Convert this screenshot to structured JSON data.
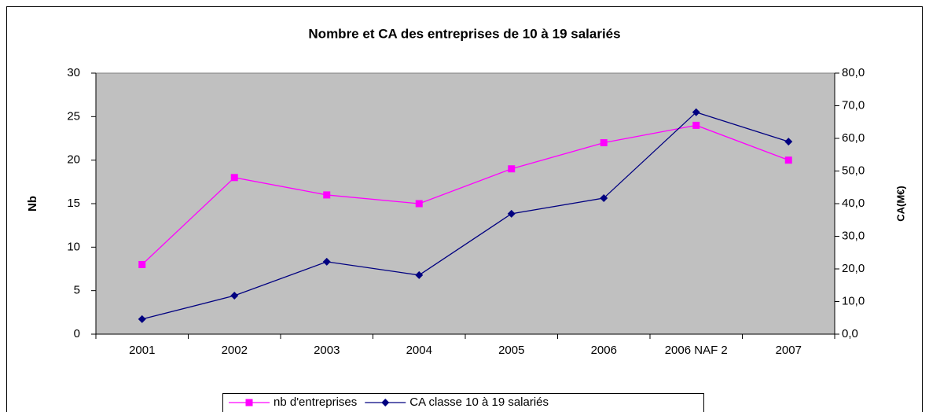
{
  "chart_data": {
    "type": "line",
    "title": "Nombre et CA des entreprises de 10 à 19 salariés",
    "categories": [
      "2001",
      "2002",
      "2003",
      "2004",
      "2005",
      "2006",
      "2006 NAF 2",
      "2007"
    ],
    "y_label": "Nb",
    "y2_label": "CA(M€)",
    "series": [
      {
        "name": "nb d'entreprises",
        "color": "#ff00ff",
        "marker": "square",
        "values": [
          8,
          18,
          16,
          15,
          19,
          22,
          24,
          20
        ]
      },
      {
        "name": "CA classe 10 à 19 salariés",
        "color": "#000080",
        "marker": "diamond",
        "axis": "y2",
        "values": [
          4.6,
          11.8,
          22.2,
          18.1,
          36.9,
          41.7,
          68.0,
          59.0
        ]
      }
    ],
    "ylim": [
      0,
      30
    ],
    "yticks": [
      0,
      5,
      10,
      15,
      20,
      25,
      30
    ],
    "y2lim": [
      0,
      80
    ],
    "y2ticks": [
      {
        "value": 0,
        "label": "0,0"
      },
      {
        "value": 10,
        "label": "10,0"
      },
      {
        "value": 20,
        "label": "20,0"
      },
      {
        "value": 30,
        "label": "30,0"
      },
      {
        "value": 40,
        "label": "40,0"
      },
      {
        "value": 50,
        "label": "50,0"
      },
      {
        "value": 60,
        "label": "60,0"
      },
      {
        "value": 70,
        "label": "70,0"
      },
      {
        "value": 80,
        "label": "80,0"
      }
    ],
    "plot_background": "#c0c0c0",
    "legend": "bottom"
  }
}
